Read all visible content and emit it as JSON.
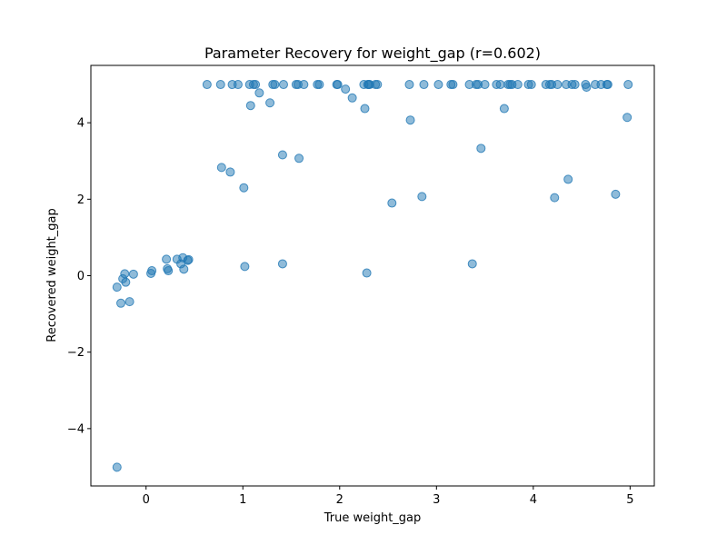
{
  "chart_data": {
    "type": "scatter",
    "title": "Parameter Recovery for weight_gap (r=0.602)",
    "xlabel": "True weight_gap",
    "ylabel": "Recovered weight_gap",
    "xlim": [
      -0.57,
      5.25
    ],
    "ylim": [
      -5.5,
      5.5
    ],
    "xticks": [
      0,
      1,
      2,
      3,
      4,
      5
    ],
    "yticks": [
      -4,
      -2,
      0,
      2,
      4
    ],
    "grid": false,
    "marker_color": "#1f77b4",
    "marker_alpha": 0.5,
    "series": [
      {
        "x": [
          -0.3,
          -0.24,
          -0.22,
          -0.21,
          -0.17,
          -0.26,
          -0.3,
          -0.13,
          0.05,
          0.06,
          0.21,
          0.22,
          0.23,
          0.32,
          0.36,
          0.38,
          0.39,
          0.43,
          0.44,
          0.63,
          0.77,
          0.78,
          0.87,
          0.89,
          0.95,
          1.01,
          1.02,
          1.07,
          1.08,
          1.11,
          1.13,
          1.17,
          1.28,
          1.31,
          1.33,
          1.41,
          1.41,
          1.42,
          1.55,
          1.57,
          1.58,
          1.63,
          1.77,
          1.79,
          1.97,
          1.98,
          2.06,
          2.13,
          2.25,
          2.26,
          2.28,
          2.29,
          2.3,
          2.31,
          2.37,
          2.39,
          2.54,
          2.72,
          2.73,
          2.85,
          2.87,
          3.02,
          3.15,
          3.17,
          3.34,
          3.37,
          3.41,
          3.43,
          3.46,
          3.5,
          3.62,
          3.66,
          3.7,
          3.74,
          3.76,
          3.78,
          3.84,
          3.95,
          3.98,
          4.13,
          4.17,
          4.19,
          4.22,
          4.25,
          4.34,
          4.36,
          4.4,
          4.43,
          4.54,
          4.55,
          4.64,
          4.7,
          4.76,
          4.77,
          4.85,
          4.97,
          4.98
        ],
        "y": [
          -5.01,
          -0.08,
          0.05,
          -0.17,
          -0.68,
          -0.72,
          -0.3,
          0.04,
          0.06,
          0.13,
          0.43,
          0.18,
          0.13,
          0.43,
          0.31,
          0.47,
          0.17,
          0.4,
          0.42,
          5.0,
          5.0,
          2.83,
          2.71,
          5.0,
          5.0,
          2.3,
          0.24,
          5.0,
          4.45,
          5.0,
          5.0,
          4.78,
          4.52,
          5.0,
          5.0,
          3.16,
          0.31,
          5.0,
          5.0,
          5.0,
          3.07,
          5.0,
          5.0,
          5.0,
          5.0,
          5.0,
          4.88,
          4.65,
          5.0,
          4.37,
          0.07,
          5.0,
          5.0,
          5.0,
          5.0,
          5.0,
          1.9,
          5.0,
          4.07,
          2.07,
          5.0,
          5.0,
          5.0,
          5.0,
          5.0,
          0.31,
          5.0,
          5.0,
          3.33,
          5.0,
          5.0,
          5.0,
          4.37,
          5.0,
          5.0,
          5.0,
          5.0,
          5.0,
          5.0,
          5.0,
          5.0,
          5.0,
          2.04,
          5.0,
          5.0,
          2.52,
          5.0,
          5.0,
          5.0,
          4.93,
          5.0,
          5.0,
          5.0,
          5.0,
          2.13,
          4.14,
          5.0
        ]
      }
    ]
  }
}
